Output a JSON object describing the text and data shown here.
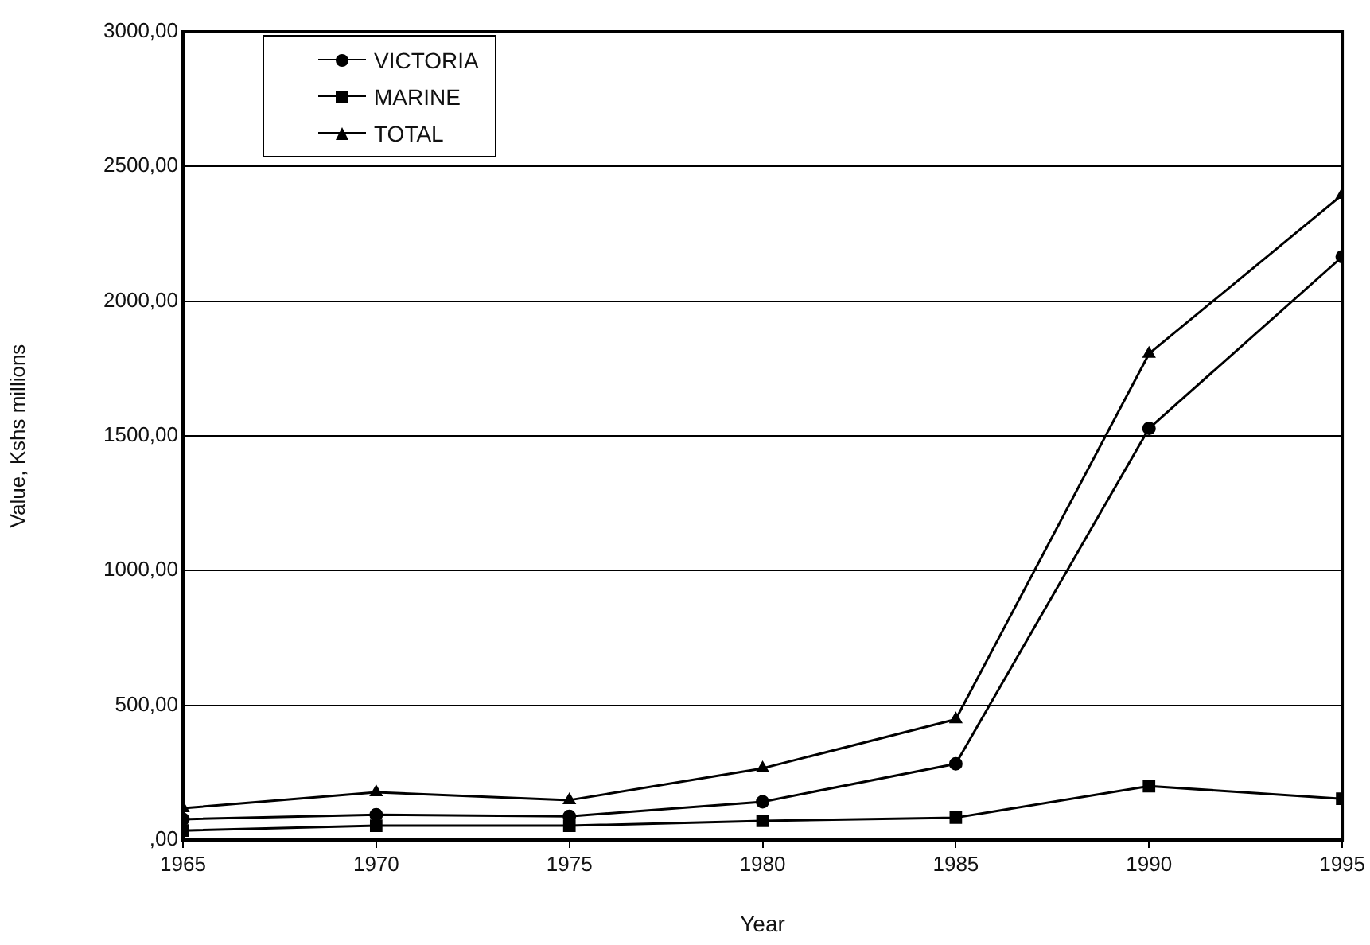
{
  "chart_data": {
    "type": "line",
    "xlabel": "Year",
    "ylabel": "Value, Kshs millions",
    "x": [
      1965,
      1970,
      1975,
      1980,
      1985,
      1990,
      1995
    ],
    "series": [
      {
        "name": "VICTORIA",
        "color": "#000000",
        "marker": "circle",
        "values": [
          77,
          94,
          88,
          142,
          283,
          1528,
          2165
        ]
      },
      {
        "name": "MARINE",
        "color": "#000000",
        "marker": "square",
        "values": [
          35,
          53,
          53,
          71,
          83,
          200,
          153
        ]
      },
      {
        "name": "TOTAL",
        "color": "#000000",
        "marker": "triangle",
        "values": [
          118,
          177,
          148,
          266,
          448,
          1805,
          2395
        ]
      }
    ],
    "xlim": [
      1965,
      1995
    ],
    "xticks": [
      1965,
      1970,
      1975,
      1980,
      1985,
      1990,
      1995
    ],
    "ylim": [
      0,
      3000
    ],
    "yticks": [
      {
        "value": 0,
        "label": ",00"
      },
      {
        "value": 500,
        "label": "500,00"
      },
      {
        "value": 1000,
        "label": "1000,00"
      },
      {
        "value": 1500,
        "label": "1500,00"
      },
      {
        "value": 2000,
        "label": "2000,00"
      },
      {
        "value": 2500,
        "label": "2500,00"
      },
      {
        "value": 3000,
        "label": "3000,00"
      }
    ],
    "grid": "y",
    "legend": "top left",
    "line_style": "solid"
  }
}
